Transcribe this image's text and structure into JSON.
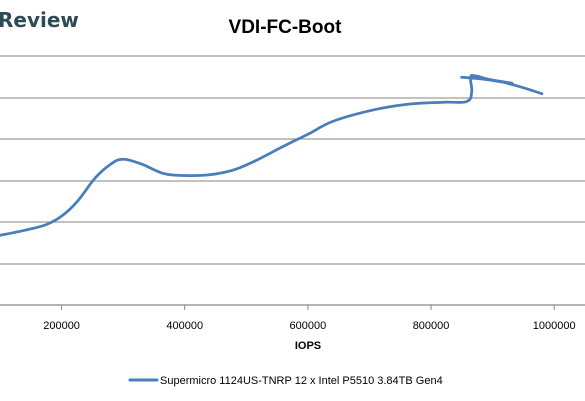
{
  "brand": {
    "text": "Review"
  },
  "chart_data": {
    "type": "line",
    "title": "VDI-FC-Boot",
    "xlabel": "IOPS",
    "ylabel": "",
    "xlim": [
      100000,
      1050000
    ],
    "x_ticks": [
      200000,
      400000,
      600000,
      800000,
      1000000
    ],
    "grid": true,
    "legend_position": "bottom",
    "series": [
      {
        "name": "Supermicro 1124US-TNRP 12 x Intel P5510 3.84TB Gen4",
        "color": "#4a7ebb",
        "points": [
          {
            "x": 100000,
            "y": 0.98
          },
          {
            "x": 140000,
            "y": 1.05
          },
          {
            "x": 175000,
            "y": 1.13
          },
          {
            "x": 200000,
            "y": 1.25
          },
          {
            "x": 225000,
            "y": 1.45
          },
          {
            "x": 255000,
            "y": 1.79
          },
          {
            "x": 280000,
            "y": 1.98
          },
          {
            "x": 300000,
            "y": 2.05
          },
          {
            "x": 330000,
            "y": 1.98
          },
          {
            "x": 365000,
            "y": 1.85
          },
          {
            "x": 400000,
            "y": 1.82
          },
          {
            "x": 440000,
            "y": 1.83
          },
          {
            "x": 480000,
            "y": 1.9
          },
          {
            "x": 520000,
            "y": 2.05
          },
          {
            "x": 560000,
            "y": 2.23
          },
          {
            "x": 600000,
            "y": 2.4
          },
          {
            "x": 640000,
            "y": 2.58
          },
          {
            "x": 700000,
            "y": 2.73
          },
          {
            "x": 760000,
            "y": 2.82
          },
          {
            "x": 820000,
            "y": 2.85
          },
          {
            "x": 858000,
            "y": 2.86
          },
          {
            "x": 866000,
            "y": 3.0
          },
          {
            "x": 864000,
            "y": 3.2
          },
          {
            "x": 872000,
            "y": 3.22
          },
          {
            "x": 895000,
            "y": 3.17
          },
          {
            "x": 930000,
            "y": 3.12
          },
          {
            "x": 920000,
            "y": 3.13
          },
          {
            "x": 880000,
            "y": 3.18
          },
          {
            "x": 850000,
            "y": 3.2
          },
          {
            "x": 900000,
            "y": 3.16
          },
          {
            "x": 940000,
            "y": 3.08
          },
          {
            "x": 980000,
            "y": 2.97
          }
        ]
      }
    ]
  }
}
